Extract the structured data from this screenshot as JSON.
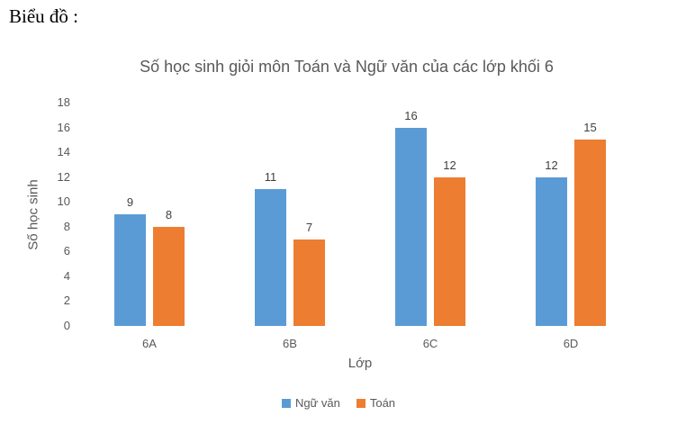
{
  "document": {
    "heading": "Biểu đồ :"
  },
  "colors": {
    "series_literature": "#5B9BD5",
    "series_math": "#ED7D31",
    "axis_text": "#595959",
    "value_label_text": "#404040",
    "title_text": "#595959",
    "background": "#FFFFFF"
  },
  "chart_data": {
    "type": "bar",
    "title": "Số học sinh giỏi môn Toán và Ngữ văn của các lớp khối 6",
    "categories": [
      "6A",
      "6B",
      "6C",
      "6D"
    ],
    "series": [
      {
        "name": "Ngữ văn",
        "color": "#5B9BD5",
        "values": [
          9,
          11,
          16,
          12
        ]
      },
      {
        "name": "Toán",
        "color": "#ED7D31",
        "values": [
          8,
          7,
          12,
          15
        ]
      }
    ],
    "xlabel": "Lớp",
    "ylabel": "Số học sinh",
    "ylim": [
      0,
      18
    ],
    "ytick_step": 2,
    "grid": false,
    "axis_line": false,
    "value_labels": true,
    "legend_position": "bottom"
  }
}
